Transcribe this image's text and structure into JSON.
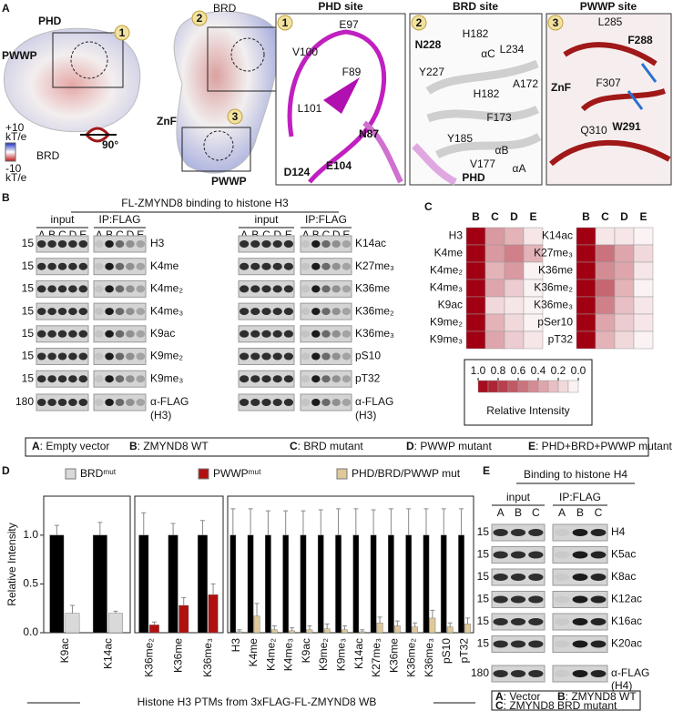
{
  "panel_a": {
    "label": "A",
    "surface": {
      "labels": [
        "PHD",
        "PWWP",
        "BRD",
        "BRD",
        "ZnF",
        "PWWP"
      ],
      "rotation": "90°",
      "scale": [
        "+10",
        "kT/e",
        "-10",
        "kT/e"
      ]
    },
    "sites": [
      {
        "number": "1",
        "title": "PHD site",
        "residues": [
          "E97",
          "V100",
          "F89",
          "L101",
          "N87",
          "D124",
          "E104"
        ]
      },
      {
        "number": "2",
        "title": "BRD site",
        "residues": [
          "N228",
          "H182",
          "L234",
          "Y227",
          "αC",
          "A172",
          "H182",
          "F173",
          "Y185",
          "V177",
          "αB",
          "αA",
          "PHD"
        ]
      },
      {
        "number": "3",
        "title": "PWWP site",
        "residues": [
          "L285",
          "F288",
          "F307",
          "ZnF",
          "Q310",
          "W291"
        ]
      }
    ]
  },
  "panel_b": {
    "label": "B",
    "title": "FL-ZMYND8 binding to histone H3",
    "input": "input",
    "ip": "IP:FLAG",
    "lanes": [
      "A",
      "B",
      "C",
      "D",
      "E"
    ],
    "blots": [
      {
        "rows": [
          {
            "mw": "15",
            "label": "H3"
          },
          {
            "mw": "15",
            "label": "K4me"
          },
          {
            "mw": "15",
            "label": "K4me₂"
          },
          {
            "mw": "15",
            "label": "K4me₃"
          },
          {
            "mw": "15",
            "label": "K9ac"
          },
          {
            "mw": "15",
            "label": "K9me₂"
          },
          {
            "mw": "15",
            "label": "K9me₃"
          },
          {
            "mw": "180",
            "label": "α-FLAG",
            "label2": "(H3)"
          }
        ]
      },
      {
        "rows": [
          {
            "label": "K14ac"
          },
          {
            "label": "K27me₃"
          },
          {
            "label": "K36me"
          },
          {
            "label": "K36me₂"
          },
          {
            "label": "K36me₃"
          },
          {
            "label": "pS10"
          },
          {
            "label": "pT32"
          },
          {
            "label": "α-FLAG",
            "label2": "(H3)"
          }
        ]
      }
    ],
    "key": [
      {
        "letter": "A",
        "text": ": Empty vector"
      },
      {
        "letter": "B",
        "text": ": ZMYND8 WT"
      },
      {
        "letter": "C",
        "text": ": BRD mutant"
      },
      {
        "letter": "D",
        "text": ": PWWP mutant"
      },
      {
        "letter": "E",
        "text": ": PHD+BRD+PWWP mutant"
      }
    ]
  },
  "panel_c": {
    "label": "C"
  },
  "panel_d": {
    "label": "D"
  },
  "chart_data": [
    {
      "type": "heatmap",
      "x": [
        "B",
        "C",
        "D",
        "E"
      ],
      "y": [
        "H3",
        "K4me",
        "K4me₂",
        "K4me₃",
        "K9ac",
        "K9me₂",
        "K9me₃"
      ],
      "values": [
        [
          1,
          0.4,
          0.3,
          0.1
        ],
        [
          1,
          0.4,
          0.5,
          0.3
        ],
        [
          1,
          0.3,
          0.4,
          0.05
        ],
        [
          1,
          0.35,
          0.2,
          0.05
        ],
        [
          1,
          0.15,
          0.1,
          0.05
        ],
        [
          1,
          0.3,
          0.15,
          0.05
        ],
        [
          1,
          0.35,
          0.2,
          0.1
        ]
      ],
      "clim": [
        0,
        1
      ],
      "color": "#a00012",
      "colorbar": {
        "title": "Relative Intensity",
        "ticks": [
          {
            "value": 1,
            "label": "1.0"
          },
          0.8,
          0.6,
          0.4,
          0.2,
          {
            "value": 0,
            "label": "0.0"
          }
        ]
      }
    },
    {
      "type": "heatmap",
      "x": [
        "B",
        "C",
        "D",
        "E"
      ],
      "y": [
        "K14ac",
        "K27me₃",
        "K36me",
        "K36me₂",
        "K36me₃",
        "pSer10",
        "pT32"
      ],
      "values": [
        [
          1,
          0.1,
          0.1,
          0.05
        ],
        [
          1,
          0.55,
          0.35,
          0.15
        ],
        [
          1,
          0.45,
          0.35,
          0.1
        ],
        [
          1,
          0.6,
          0.3,
          0.05
        ],
        [
          1,
          0.5,
          0.25,
          0.1
        ],
        [
          1,
          0.35,
          0.2,
          0.1
        ],
        [
          1,
          0.3,
          0.15,
          0.05
        ]
      ],
      "clim": [
        0,
        1
      ],
      "color": "#a00012"
    },
    {
      "type": "bar",
      "categories": [
        "K9ac",
        "K14ac"
      ],
      "ylim": [
        0,
        1.4
      ],
      "yticks": [
        {
          "value": 0,
          "label": "0.0"
        },
        0.5,
        {
          "value": 1,
          "label": "1.0"
        }
      ],
      "ylabel": "Relative Intensity",
      "xlabel": "Histone H3 PTMs from 3xFLAG-FL-ZMYND8 WB",
      "series": [
        {
          "color": "#000000",
          "values": [
            1,
            1
          ],
          "errors": [
            0.1,
            0.13
          ]
        },
        {
          "name": "BRDᵐᵘᵗ",
          "color": "#d9d9d9",
          "values": [
            0.2,
            0.2
          ],
          "errors": [
            0.08,
            0.02
          ]
        }
      ]
    },
    {
      "type": "bar",
      "categories": [
        "K36me₂",
        "K36me",
        "K36me₃"
      ],
      "ylim": [
        0,
        1.4
      ],
      "series": [
        {
          "color": "#000000",
          "values": [
            1,
            1,
            1
          ],
          "errors": [
            0.23,
            0.12,
            0.15
          ]
        },
        {
          "name": "PWWPᵐᵘᵗ",
          "color": "#b01010",
          "values": [
            0.08,
            0.28,
            0.39
          ],
          "errors": [
            0.03,
            0.08,
            0.11
          ]
        }
      ]
    },
    {
      "type": "bar",
      "categories": [
        "H3",
        "K4me",
        "K4me₂",
        "K4me₃",
        "K9ac",
        "K9me₂",
        "K9me₃",
        "K14ac",
        "K27me₃",
        "K36me",
        "K36me₂",
        "K36me₃",
        "pS10",
        "pT32"
      ],
      "ylim": [
        0,
        1.4
      ],
      "series": [
        {
          "color": "#000000",
          "values": [
            1,
            1,
            1,
            1,
            1,
            1,
            1,
            1,
            1,
            1,
            1,
            1,
            1,
            1
          ],
          "errors": [
            0.27,
            0.27,
            0.25,
            0.25,
            0.25,
            0.26,
            0.27,
            0.27,
            0.26,
            0.27,
            0.27,
            0.27,
            0.27,
            0.27
          ]
        },
        {
          "name": "PHD/BRD/PWWP mut",
          "color": "#e0c89a",
          "values": [
            0.01,
            0.17,
            0.03,
            0.02,
            0.03,
            0.04,
            0.03,
            0.01,
            0.1,
            0.07,
            0.06,
            0.15,
            0.06,
            0.09
          ],
          "errors": [
            0.02,
            0.13,
            0.04,
            0.03,
            0.04,
            0.05,
            0.04,
            0.02,
            0.06,
            0.05,
            0.04,
            0.08,
            0.04,
            0.06
          ]
        }
      ]
    }
  ],
  "panel_e": {
    "label": "E",
    "title": "Binding to histone H4",
    "input": "input",
    "ip": "IP:FLAG",
    "lanes": [
      "A",
      "B",
      "C"
    ],
    "rows": [
      {
        "mw": "15",
        "label": "H4"
      },
      {
        "mw": "15",
        "label": "K5ac"
      },
      {
        "mw": "15",
        "label": "K8ac"
      },
      {
        "mw": "15",
        "label": "K12ac"
      },
      {
        "mw": "15",
        "label": "K16ac"
      },
      {
        "mw": "15",
        "label": "K20ac"
      },
      {
        "mw": "180",
        "label": "α-FLAG",
        "label2": "(H4)"
      }
    ],
    "key": [
      {
        "letter": "A",
        "text": ": Vector"
      },
      {
        "letter": "B",
        "text": ": ZMYND8 WT"
      },
      {
        "letter": "C",
        "text": ": ZMYND8 BRD mutant"
      }
    ]
  }
}
